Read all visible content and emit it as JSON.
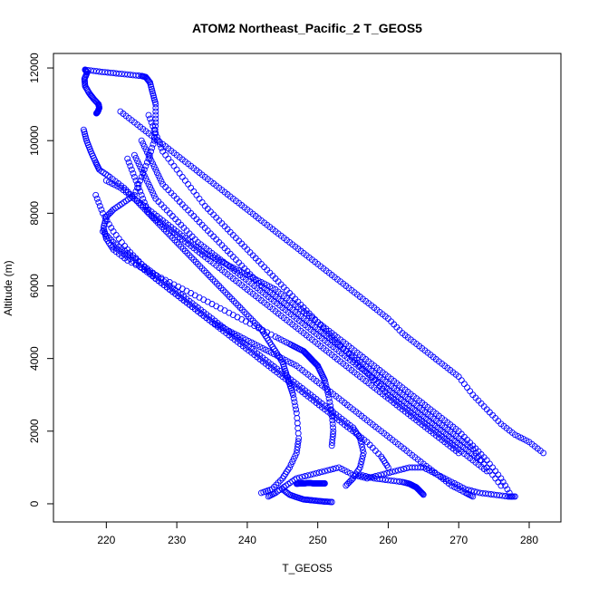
{
  "chart_data": {
    "type": "scatter",
    "title": "ATOM2 Northeast_Pacific_2 T_GEOS5",
    "xlabel": "T_GEOS5",
    "ylabel": "Altitude (m)",
    "xlim": [
      212.5,
      284.5
    ],
    "ylim": [
      -500,
      12400
    ],
    "xticks": [
      "220",
      "230",
      "240",
      "250",
      "260",
      "270",
      "280"
    ],
    "yticks": [
      "0",
      "2000",
      "4000",
      "6000",
      "8000",
      "10000",
      "12000"
    ],
    "grid": false,
    "legend": "none",
    "marker": "open-circle",
    "color": "#0000ff",
    "series": [
      {
        "x": [
          217.0,
          217.3,
          216.9,
          217.0,
          217.6,
          218.2,
          218.9,
          219.0,
          218.8,
          218.6
        ],
        "y": [
          11950,
          11880,
          11700,
          11500,
          11300,
          11150,
          11000,
          10900,
          10800,
          10750
        ]
      },
      {
        "x": [
          217.0,
          219.0,
          221.0,
          223.0,
          225.0,
          225.6,
          226.2,
          226.6,
          227.0,
          227.0,
          226.8,
          226.0,
          225.0,
          224.0,
          222.5,
          221.0,
          220.0,
          219.6,
          220.0,
          221.0,
          223.0,
          226.0,
          229.0,
          232.0,
          235.0,
          238.0,
          241.0,
          244.0,
          246.0,
          247.0,
          248.0,
          248.5,
          249.0,
          249.5,
          250.0,
          250.5,
          251.0,
          251.5,
          252.0,
          252.2,
          252.0
        ],
        "y": [
          11950,
          11900,
          11860,
          11820,
          11780,
          11750,
          11600,
          11300,
          11000,
          10500,
          10000,
          9500,
          9000,
          8500,
          8300,
          8100,
          7900,
          7600,
          7300,
          7000,
          6700,
          6400,
          6100,
          5800,
          5500,
          5200,
          4900,
          4600,
          4400,
          4300,
          4200,
          4100,
          4000,
          3900,
          3800,
          3600,
          3400,
          3000,
          2500,
          2000,
          1600
        ]
      },
      {
        "x": [
          216.8,
          217.2,
          217.8,
          218.5,
          219.0,
          220.5,
          222.5,
          224.0,
          225.5,
          227.0,
          228.5,
          230.0,
          231.5,
          233.0,
          234.5,
          236.0,
          237.5,
          239.0,
          240.5,
          242.0,
          243.0,
          244.0,
          245.0,
          245.5,
          246.0,
          246.5,
          247.0,
          247.3,
          247.0,
          246.0,
          245.0,
          243.5,
          242.0
        ],
        "y": [
          10300,
          10000,
          9700,
          9400,
          9200,
          9000,
          8700,
          8400,
          8100,
          7800,
          7500,
          7200,
          6900,
          6600,
          6300,
          6000,
          5700,
          5400,
          5100,
          4800,
          4500,
          4200,
          3900,
          3600,
          3300,
          3000,
          2500,
          1800,
          1400,
          1000,
          700,
          400,
          300
        ]
      },
      {
        "x": [
          222.0,
          224.0,
          226.0,
          228.0,
          230.0,
          232.0,
          234.0,
          236.0,
          238.0,
          240.0,
          242.0,
          244.0,
          246.0,
          248.0,
          250.0,
          252.0,
          254.0,
          256.0,
          258.0,
          260.0,
          262.0,
          264.0,
          266.0,
          268.0,
          270.0,
          272.0,
          274.0,
          276.0,
          278.0,
          280.0,
          282.0
        ],
        "y": [
          10800,
          10500,
          10200,
          9900,
          9600,
          9300,
          9000,
          8700,
          8400,
          8100,
          7800,
          7500,
          7200,
          6900,
          6600,
          6300,
          6000,
          5700,
          5400,
          5100,
          4700,
          4400,
          4100,
          3800,
          3500,
          3000,
          2600,
          2200,
          1900,
          1700,
          1400
        ]
      },
      {
        "x": [
          220.0,
          222.0,
          224.0,
          226.0,
          228.0,
          230.0,
          232.0,
          234.0,
          236.0,
          238.0,
          240.0,
          242.0,
          244.0,
          246.0,
          248.0,
          250.0,
          252.0,
          254.0,
          256.0,
          258.0,
          260.0,
          262.0,
          264.0,
          266.0,
          268.0,
          270.0,
          272.0,
          274.0,
          276.0,
          277.5
        ],
        "y": [
          8900,
          8700,
          8400,
          8100,
          7800,
          7500,
          7200,
          6900,
          6700,
          6500,
          6300,
          6100,
          5900,
          5600,
          5300,
          5000,
          4700,
          4400,
          4100,
          3800,
          3500,
          3200,
          2900,
          2600,
          2300,
          2000,
          1600,
          1200,
          700,
          200
        ]
      },
      {
        "x": [
          221.0,
          223.0,
          225.0,
          227.0,
          229.0,
          231.0,
          233.0,
          235.0,
          237.0,
          239.0,
          241.0,
          243.0,
          245.0,
          247.0,
          249.0,
          251.0,
          253.0,
          255.0,
          257.0,
          259.0,
          261.0,
          263.0,
          265.0,
          267.0,
          269.0,
          271.0,
          272.0
        ],
        "y": [
          7100,
          6800,
          6500,
          6200,
          5900,
          5600,
          5300,
          5000,
          4800,
          4600,
          4400,
          4200,
          4000,
          3800,
          3500,
          3200,
          2900,
          2600,
          2300,
          2000,
          1700,
          1400,
          1100,
          800,
          500,
          300,
          200
        ]
      },
      {
        "x": [
          219.5,
          221.0,
          223.0,
          225.0,
          227.0,
          229.0,
          231.0,
          233.0,
          235.0,
          237.0,
          239.0,
          241.0,
          243.0,
          245.0,
          247.0,
          249.0,
          251.0,
          253.0,
          255.0,
          256.0,
          256.5,
          256.0,
          255.0,
          254.0
        ],
        "y": [
          7500,
          7200,
          6900,
          6600,
          6300,
          6000,
          5700,
          5400,
          5100,
          4800,
          4500,
          4200,
          3900,
          3600,
          3300,
          3000,
          2700,
          2400,
          2100,
          1800,
          1400,
          1000,
          700,
          500
        ]
      },
      {
        "x": [
          225.0,
          226.0,
          227.0,
          228.0,
          230.0,
          232.0,
          234.0,
          236.0,
          238.0,
          240.0,
          242.0,
          244.0,
          246.0,
          248.0,
          250.0,
          252.0,
          254.0,
          256.0,
          258.0,
          260.0,
          262.0,
          264.0,
          266.0,
          268.0,
          270.0,
          272.0,
          274.0,
          276.0
        ],
        "y": [
          10000,
          9600,
          9200,
          8800,
          8400,
          8000,
          7600,
          7200,
          6800,
          6400,
          6000,
          5700,
          5400,
          5100,
          4800,
          4500,
          4200,
          3900,
          3600,
          3300,
          3000,
          2700,
          2400,
          2100,
          1800,
          1500,
          1000,
          500
        ]
      },
      {
        "x": [
          224.0,
          225.0,
          226.0,
          227.0,
          229.0,
          231.0,
          233.0,
          235.0,
          237.0,
          239.0,
          241.0,
          243.0,
          245.0,
          247.0,
          249.0,
          251.0,
          253.0,
          255.0,
          257.0,
          259.0,
          261.0,
          263.0,
          265.0,
          267.0,
          269.0,
          271.0,
          273.0
        ],
        "y": [
          9600,
          9200,
          8800,
          8400,
          8000,
          7600,
          7200,
          6900,
          6600,
          6300,
          6000,
          5700,
          5400,
          5100,
          4800,
          4500,
          4200,
          3900,
          3600,
          3300,
          3000,
          2700,
          2400,
          2100,
          1800,
          1500,
          1200
        ]
      },
      {
        "x": [
          218.5,
          219.5,
          221.0,
          223.0,
          225.0,
          227.0,
          229.0,
          231.0,
          233.0,
          235.0,
          237.0,
          239.0,
          241.0,
          243.0,
          245.0,
          247.0,
          249.0,
          251.0,
          253.0,
          255.0,
          257.0,
          259.0,
          260.0
        ],
        "y": [
          8500,
          8000,
          7500,
          7000,
          6600,
          6200,
          5900,
          5600,
          5300,
          5000,
          4700,
          4400,
          4100,
          3800,
          3500,
          3200,
          2900,
          2600,
          2300,
          2000,
          1700,
          1300,
          1000
        ]
      },
      {
        "x": [
          226.0,
          227.0,
          228.0,
          230.0,
          232.0,
          234.0,
          236.0,
          238.0,
          240.0,
          242.0,
          244.0,
          246.0,
          248.0,
          250.0,
          252.0,
          254.0,
          256.0,
          258.0,
          260.0,
          262.0,
          264.0,
          266.0,
          268.0,
          270.0,
          272.0,
          274.0
        ],
        "y": [
          10700,
          10200,
          9700,
          9200,
          8700,
          8200,
          7800,
          7400,
          7000,
          6600,
          6200,
          5800,
          5400,
          5000,
          4600,
          4200,
          3800,
          3400,
          3000,
          2700,
          2400,
          2100,
          1800,
          1500,
          1200,
          900
        ]
      },
      {
        "x": [
          223.0,
          224.0,
          225.0,
          226.0,
          228.0,
          230.0,
          232.0,
          234.0,
          236.0,
          238.0,
          240.0,
          242.0,
          244.0,
          246.0,
          248.0,
          250.0,
          252.0,
          254.0,
          256.0,
          258.0,
          260.0,
          262.0,
          264.0,
          266.0,
          268.0,
          270.0
        ],
        "y": [
          9500,
          9000,
          8500,
          8000,
          7700,
          7400,
          7100,
          6800,
          6500,
          6200,
          5900,
          5600,
          5300,
          5000,
          4700,
          4400,
          4100,
          3800,
          3500,
          3200,
          2900,
          2600,
          2300,
          2000,
          1700,
          1400
        ]
      },
      {
        "x": [
          243.0,
          244.0,
          245.5,
          247.0,
          249.0,
          251.0,
          253.0,
          255.0,
          257.0,
          259.0,
          261.0,
          263.0,
          265.0,
          267.0,
          269.0,
          271.0,
          273.0,
          275.0,
          277.0,
          278.0
        ],
        "y": [
          200,
          300,
          500,
          700,
          800,
          900,
          1000,
          800,
          700,
          800,
          900,
          1000,
          1000,
          800,
          600,
          400,
          300,
          250,
          200,
          200
        ]
      },
      {
        "x": [
          245.0,
          246.0,
          247.0,
          248.0,
          249.0,
          250.0,
          251.0,
          252.0
        ],
        "y": [
          400,
          250,
          180,
          120,
          100,
          80,
          60,
          50
        ]
      },
      {
        "x": [
          247.0,
          247.5,
          248.0,
          248.5,
          249.0,
          249.5,
          250.0,
          250.5,
          251.0
        ],
        "y": [
          550,
          560,
          560,
          570,
          570,
          560,
          560,
          560,
          560
        ]
      },
      {
        "x": [
          256.0,
          258.0,
          260.0,
          262.0,
          263.0,
          263.5,
          264.0,
          264.5,
          265.0
        ],
        "y": [
          800,
          700,
          650,
          600,
          550,
          500,
          450,
          350,
          250
        ]
      }
    ]
  }
}
